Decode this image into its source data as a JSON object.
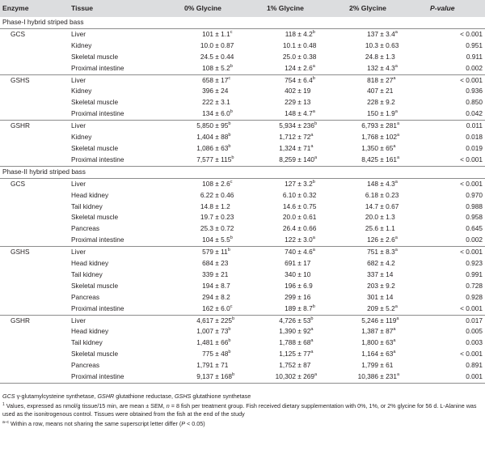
{
  "headers": {
    "enzyme": "Enzyme",
    "tissue": "Tissue",
    "g0": "0% Glycine",
    "g1": "1% Glycine",
    "g2": "2% Glycine",
    "p": "P-value"
  },
  "sections": [
    {
      "title": "Phase-I hybrid striped bass",
      "groups": [
        {
          "enzyme": "GCS",
          "rows": [
            {
              "tissue": "Liver",
              "g0": "101 ± 1.1",
              "g0s": "c",
              "g1": "118 ± 4.2",
              "g1s": "b",
              "g2": "137 ± 3.4",
              "g2s": "a",
              "p": "< 0.001"
            },
            {
              "tissue": "Kidney",
              "g0": "10.0 ± 0.87",
              "g0s": "",
              "g1": "10.1 ± 0.48",
              "g1s": "",
              "g2": "10.3 ± 0.63",
              "g2s": "",
              "p": "0.951"
            },
            {
              "tissue": "Skeletal muscle",
              "g0": "24.5 ± 0.44",
              "g0s": "",
              "g1": "25.0 ± 0.38",
              "g1s": "",
              "g2": "24.8 ± 1.3",
              "g2s": "",
              "p": "0.911"
            },
            {
              "tissue": "Proximal intestine",
              "g0": "108 ± 5.2",
              "g0s": "b",
              "g1": "124 ± 2.6",
              "g1s": "a",
              "g2": "132 ± 4.3",
              "g2s": "a",
              "p": "0.002"
            }
          ]
        },
        {
          "enzyme": "GSHS",
          "rows": [
            {
              "tissue": "Liver",
              "g0": "658 ± 17",
              "g0s": "c",
              "g1": "754 ± 6.4",
              "g1s": "b",
              "g2": "818 ± 27",
              "g2s": "a",
              "p": "< 0.001"
            },
            {
              "tissue": "Kidney",
              "g0": "396 ± 24",
              "g0s": "",
              "g1": "402 ± 19",
              "g1s": "",
              "g2": "407 ± 21",
              "g2s": "",
              "p": "0.936"
            },
            {
              "tissue": "Skeletal muscle",
              "g0": "222 ± 3.1",
              "g0s": "",
              "g1": "229 ± 13",
              "g1s": "",
              "g2": "228 ± 9.2",
              "g2s": "",
              "p": "0.850"
            },
            {
              "tissue": "Proximal intestine",
              "g0": "134 ± 6.0",
              "g0s": "b",
              "g1": "148 ± 4.7",
              "g1s": "a",
              "g2": "150 ± 1.9",
              "g2s": "a",
              "p": "0.042"
            }
          ]
        },
        {
          "enzyme": "GSHR",
          "rows": [
            {
              "tissue": "Liver",
              "g0": "5,850 ± 95",
              "g0s": "b",
              "g1": "5,934 ± 236",
              "g1s": "b",
              "g2": "6,793 ± 281",
              "g2s": "a",
              "p": "0.011"
            },
            {
              "tissue": "Kidney",
              "g0": "1,404 ± 88",
              "g0s": "b",
              "g1": "1,712 ± 72",
              "g1s": "a",
              "g2": "1,768 ± 102",
              "g2s": "a",
              "p": "0.018"
            },
            {
              "tissue": "Skeletal muscle",
              "g0": "1,086 ± 63",
              "g0s": "b",
              "g1": "1,324 ± 71",
              "g1s": "a",
              "g2": "1,350 ± 65",
              "g2s": "a",
              "p": "0.019"
            },
            {
              "tissue": "Proximal intestine",
              "g0": "7,577 ± 115",
              "g0s": "b",
              "g1": "8,259 ± 140",
              "g1s": "a",
              "g2": "8,425 ± 161",
              "g2s": "a",
              "p": "< 0.001"
            }
          ]
        }
      ]
    },
    {
      "title": "Phase-II hybrid striped bass",
      "groups": [
        {
          "enzyme": "GCS",
          "rows": [
            {
              "tissue": "Liver",
              "g0": "108 ± 2.6",
              "g0s": "c",
              "g1": "127 ± 3.2",
              "g1s": "b",
              "g2": "148 ± 4.3",
              "g2s": "a",
              "p": "< 0.001"
            },
            {
              "tissue": "Head kidney",
              "g0": "6.22 ± 0.46",
              "g0s": "",
              "g1": "6.10 ± 0.32",
              "g1s": "",
              "g2": "6.18 ± 0.23",
              "g2s": "",
              "p": "0.970"
            },
            {
              "tissue": "Tail kidney",
              "g0": "14.8 ± 1.2",
              "g0s": "",
              "g1": "14.6 ± 0.75",
              "g1s": "",
              "g2": "14.7 ± 0.67",
              "g2s": "",
              "p": "0.988"
            },
            {
              "tissue": "Skeletal muscle",
              "g0": "19.7 ± 0.23",
              "g0s": "",
              "g1": "20.0 ± 0.61",
              "g1s": "",
              "g2": "20.0 ± 1.3",
              "g2s": "",
              "p": "0.958"
            },
            {
              "tissue": "Pancreas",
              "g0": "25.3 ± 0.72",
              "g0s": "",
              "g1": "26.4 ± 0.66",
              "g1s": "",
              "g2": "25.6 ± 1.1",
              "g2s": "",
              "p": "0.645"
            },
            {
              "tissue": "Proximal intestine",
              "g0": "104 ± 5.5",
              "g0s": "b",
              "g1": "122 ± 3.0",
              "g1s": "a",
              "g2": "126 ± 2.6",
              "g2s": "a",
              "p": "0.002"
            }
          ]
        },
        {
          "enzyme": "GSHS",
          "rows": [
            {
              "tissue": "Liver",
              "g0": "579 ± 11",
              "g0s": "b",
              "g1": "740 ± 4.6",
              "g1s": "a",
              "g2": "751 ± 8.3",
              "g2s": "a",
              "p": "< 0.001"
            },
            {
              "tissue": "Head kidney",
              "g0": "684 ± 23",
              "g0s": "",
              "g1": "691 ± 17",
              "g1s": "",
              "g2": "682 ± 4.2",
              "g2s": "",
              "p": "0.923"
            },
            {
              "tissue": "Tail kidney",
              "g0": "339 ± 21",
              "g0s": "",
              "g1": "340 ± 10",
              "g1s": "",
              "g2": "337 ± 14",
              "g2s": "",
              "p": "0.991"
            },
            {
              "tissue": "Skeletal muscle",
              "g0": "194 ± 8.7",
              "g0s": "",
              "g1": "196 ± 6.9",
              "g1s": "",
              "g2": "203 ± 9.2",
              "g2s": "",
              "p": "0.728"
            },
            {
              "tissue": "Pancreas",
              "g0": "294 ± 8.2",
              "g0s": "",
              "g1": "299 ± 16",
              "g1s": "",
              "g2": "301 ± 14",
              "g2s": "",
              "p": "0.928"
            },
            {
              "tissue": "Proximal intestine",
              "g0": "162 ± 6.0",
              "g0s": "c",
              "g1": "189 ± 8.7",
              "g1s": "b",
              "g2": "209 ± 5.2",
              "g2s": "a",
              "p": "< 0.001"
            }
          ]
        },
        {
          "enzyme": "GSHR",
          "rows": [
            {
              "tissue": "Liver",
              "g0": "4,617 ± 225",
              "g0s": "b",
              "g1": "4,726 ± 53",
              "g1s": "b",
              "g2": "5,246 ± 119",
              "g2s": "a",
              "p": "0.017"
            },
            {
              "tissue": "Head kidney",
              "g0": "1,007 ± 73",
              "g0s": "b",
              "g1": "1,390 ± 92",
              "g1s": "a",
              "g2": "1,387 ± 87",
              "g2s": "a",
              "p": "0.005"
            },
            {
              "tissue": "Tail kidney",
              "g0": "1,481 ± 66",
              "g0s": "b",
              "g1": "1,788 ± 68",
              "g1s": "a",
              "g2": "1,800 ± 63",
              "g2s": "a",
              "p": "0.003"
            },
            {
              "tissue": "Skeletal muscle",
              "g0": "775 ± 48",
              "g0s": "b",
              "g1": "1,125 ± 77",
              "g1s": "a",
              "g2": "1,164 ± 63",
              "g2s": "a",
              "p": "< 0.001"
            },
            {
              "tissue": "Pancreas",
              "g0": "1,791 ± 71",
              "g0s": "",
              "g1": "1,752 ± 87",
              "g1s": "",
              "g2": "1,799 ± 61",
              "g2s": "",
              "p": "0.891"
            },
            {
              "tissue": "Proximal intestine",
              "g0": "9,137 ± 168",
              "g0s": "b",
              "g1": "10,302 ± 269",
              "g1s": "a",
              "g2": "10,386 ± 231",
              "g2s": "a",
              "p": "0.001"
            }
          ]
        }
      ]
    }
  ],
  "footnotes": {
    "abbr": [
      {
        "term": "GCS",
        "def": " γ-glutamylcysteine synthetase, "
      },
      {
        "term": "GSHR",
        "def": " glutathione reductase, "
      },
      {
        "term": "GSHS",
        "def": " glutathione synthetase"
      }
    ],
    "note1_mark": "1",
    "note1_a": " Values, expressed as nmol/g tissue/15 min, are mean ± SEM, ",
    "note1_n": "n",
    "note1_b": " = 8 fish per treatment group. Fish received dietary supplementation with 0%, 1%, or 2% glycine for 56 d. L-Alanine was used as the isonitrogenous control. Tissues were obtained from the fish at the end of the study",
    "note2_mark": "a–c",
    "note2_a": " Within a row, means not sharing the same superscript letter differ (",
    "note2_p": "P",
    "note2_b": " < 0.05)"
  }
}
